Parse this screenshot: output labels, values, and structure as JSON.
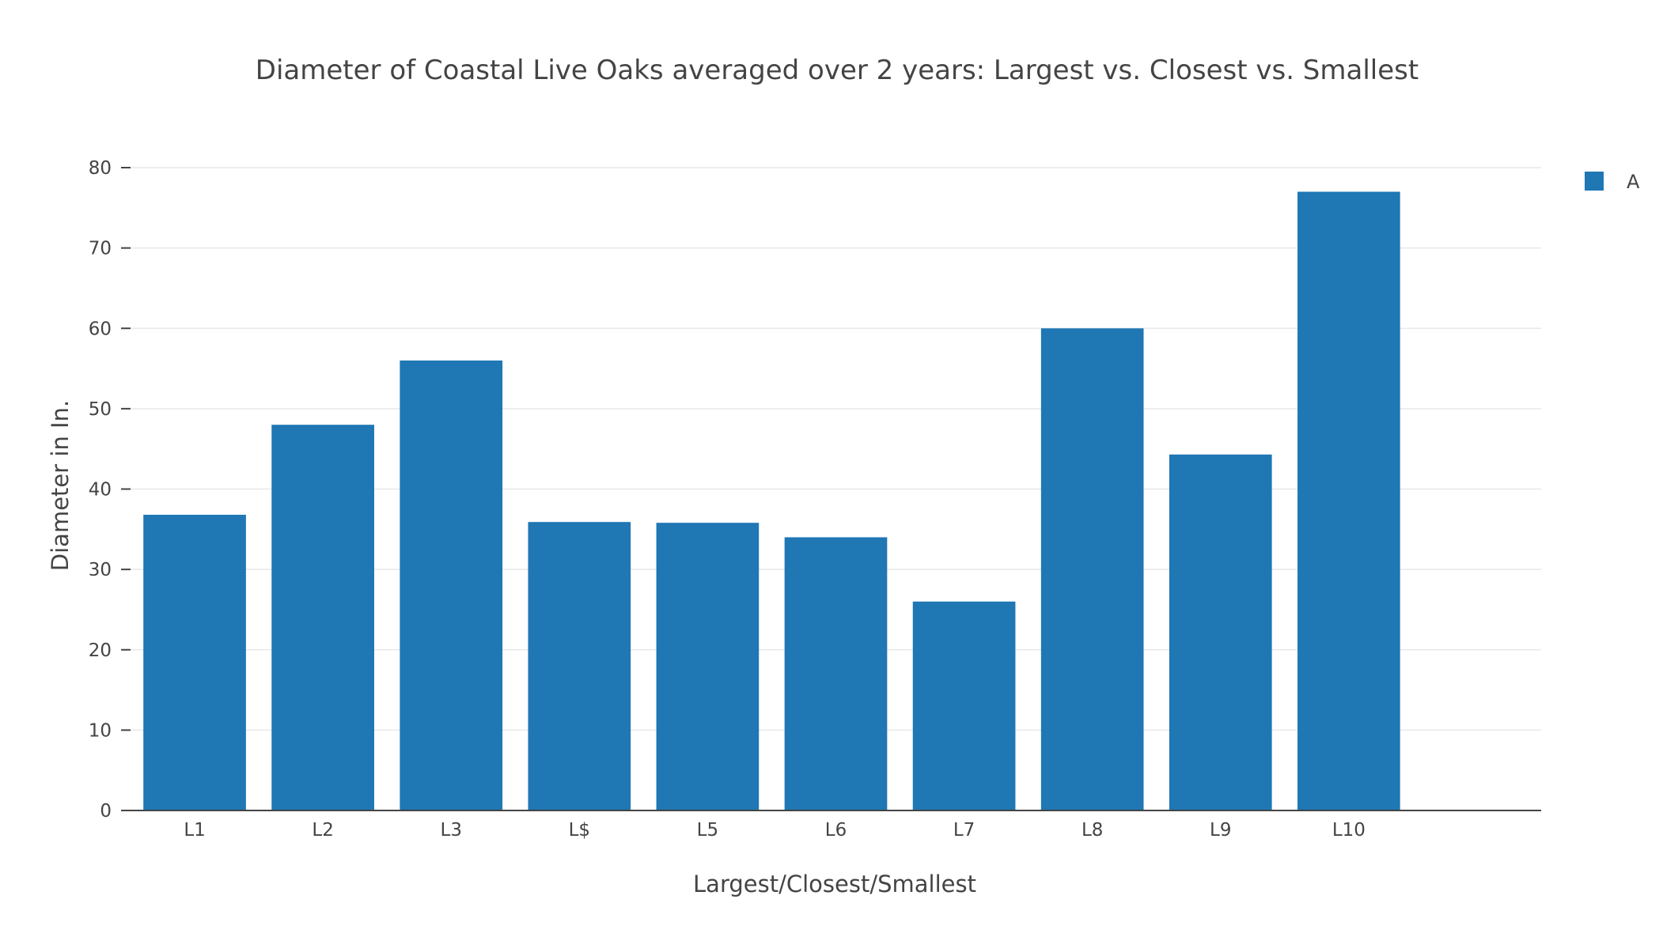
{
  "chart_data": {
    "type": "bar",
    "title": "Diameter of Coastal Live Oaks averaged over 2 years: Largest vs. Closest vs. Smallest",
    "xlabel": "Largest/Closest/Smallest",
    "ylabel": "Diameter in In.",
    "categories": [
      "L1",
      "L2",
      "L3",
      "L$",
      "L5",
      "L6",
      "L7",
      "L8",
      "L9",
      "L10"
    ],
    "series": [
      {
        "name": "A",
        "color": "#1f77b4",
        "values": [
          36.8,
          48,
          56,
          35.9,
          35.8,
          34,
          26,
          60,
          44.3,
          77
        ]
      }
    ],
    "ylim": [
      0,
      80
    ],
    "yticks": [
      0,
      10,
      20,
      30,
      40,
      50,
      60,
      70,
      80
    ],
    "grid": true,
    "legend_position": "top-right"
  }
}
